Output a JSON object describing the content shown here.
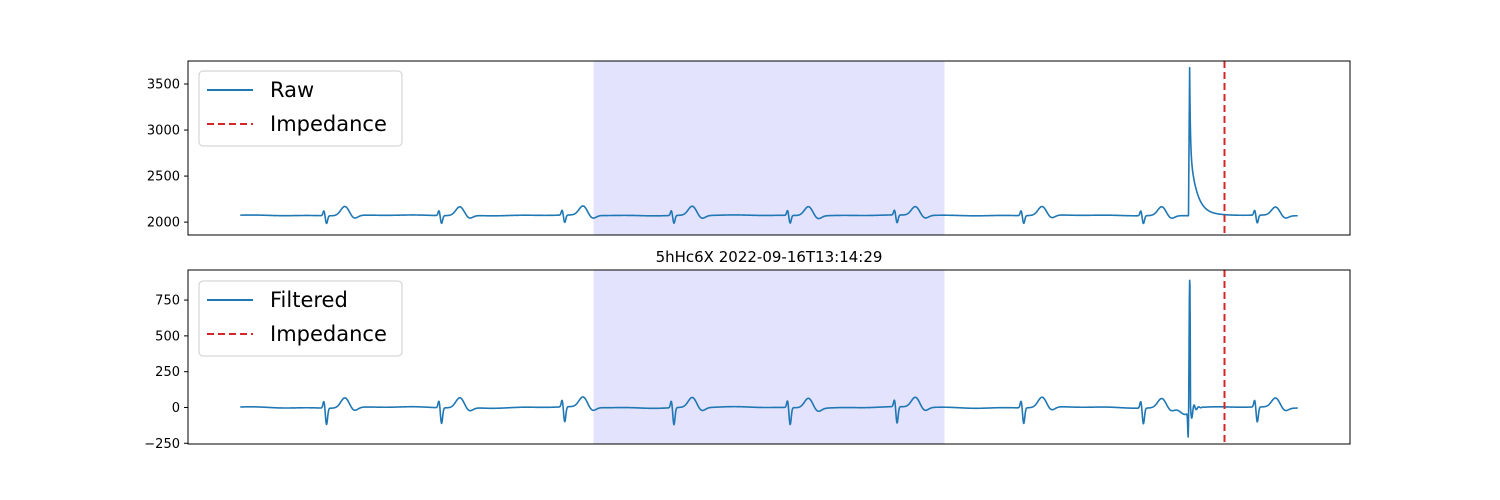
{
  "title": "5hHc6X 2022-09-16T13:14:29",
  "colors": {
    "signal": "#1f77b4",
    "impedance": "#d62728",
    "highlight": "#e3e3fd"
  },
  "chart_data": [
    {
      "type": "line",
      "panel": "top",
      "title": "",
      "xlim": [
        0,
        1000
      ],
      "ylim": [
        1860,
        3750
      ],
      "yticks": [
        {
          "value": 2000,
          "label": "2000"
        },
        {
          "value": 2500,
          "label": "2500"
        },
        {
          "value": 3000,
          "label": "3000"
        },
        {
          "value": 3500,
          "label": "3500"
        }
      ],
      "highlight_span": [
        349,
        651
      ],
      "impedance_x": 892,
      "legend": {
        "position": "upper-left",
        "entries": [
          "Raw",
          "Impedance"
        ]
      },
      "series": [
        {
          "name": "Raw",
          "baseline": 2073,
          "start": 45,
          "end": 955,
          "beats": [
            {
              "r": 117,
              "spike": 55,
              "dip": -85,
              "t": 135,
              "t_amp": 100
            },
            {
              "r": 216,
              "spike": 55,
              "dip": -85,
              "t": 234,
              "t_amp": 95
            },
            {
              "r": 322,
              "spike": 55,
              "dip": -80,
              "t": 340,
              "t_amp": 100
            },
            {
              "r": 416,
              "spike": 55,
              "dip": -85,
              "t": 434,
              "t_amp": 100
            },
            {
              "r": 516,
              "spike": 55,
              "dip": -85,
              "t": 534,
              "t_amp": 100
            },
            {
              "r": 608,
              "spike": 55,
              "dip": -85,
              "t": 626,
              "t_amp": 95
            },
            {
              "r": 717,
              "spike": 55,
              "dip": -85,
              "t": 735,
              "t_amp": 95
            },
            {
              "r": 820,
              "spike": 55,
              "dip": -85,
              "t": 838,
              "t_amp": 95
            },
            {
              "r": 918,
              "spike": 55,
              "dip": -85,
              "t": 936,
              "t_amp": 90
            }
          ],
          "artifact": {
            "x": 862,
            "peak": 3680,
            "decay_to": 2073
          }
        }
      ]
    },
    {
      "type": "line",
      "panel": "bottom",
      "title": "5hHc6X 2022-09-16T13:14:29",
      "xlim": [
        0,
        1000
      ],
      "ylim": [
        -255,
        960
      ],
      "yticks": [
        {
          "value": -250,
          "label": "−250"
        },
        {
          "value": 0,
          "label": "0"
        },
        {
          "value": 250,
          "label": "250"
        },
        {
          "value": 500,
          "label": "500"
        },
        {
          "value": 750,
          "label": "750"
        }
      ],
      "highlight_span": [
        349,
        651
      ],
      "impedance_x": 892,
      "legend": {
        "position": "upper-left",
        "entries": [
          "Filtered",
          "Impedance"
        ]
      },
      "series": [
        {
          "name": "Filtered",
          "baseline": 0,
          "start": 45,
          "end": 955,
          "beats": [
            {
              "r": 117,
              "spike": 50,
              "dip": -115,
              "t": 135,
              "t_amp": 70
            },
            {
              "r": 216,
              "spike": 50,
              "dip": -110,
              "t": 234,
              "t_amp": 70
            },
            {
              "r": 322,
              "spike": 50,
              "dip": -105,
              "t": 340,
              "t_amp": 70
            },
            {
              "r": 416,
              "spike": 50,
              "dip": -120,
              "t": 434,
              "t_amp": 70
            },
            {
              "r": 516,
              "spike": 50,
              "dip": -120,
              "t": 534,
              "t_amp": 70
            },
            {
              "r": 608,
              "spike": 50,
              "dip": -115,
              "t": 626,
              "t_amp": 70
            },
            {
              "r": 717,
              "spike": 50,
              "dip": -110,
              "t": 735,
              "t_amp": 70
            },
            {
              "r": 820,
              "spike": 50,
              "dip": -110,
              "t": 838,
              "t_amp": 65
            },
            {
              "r": 918,
              "spike": 50,
              "dip": -105,
              "t": 936,
              "t_amp": 65
            }
          ],
          "artifact": {
            "x": 862,
            "peak": 920,
            "trough": -210,
            "decay_to": 0
          }
        }
      ]
    }
  ]
}
